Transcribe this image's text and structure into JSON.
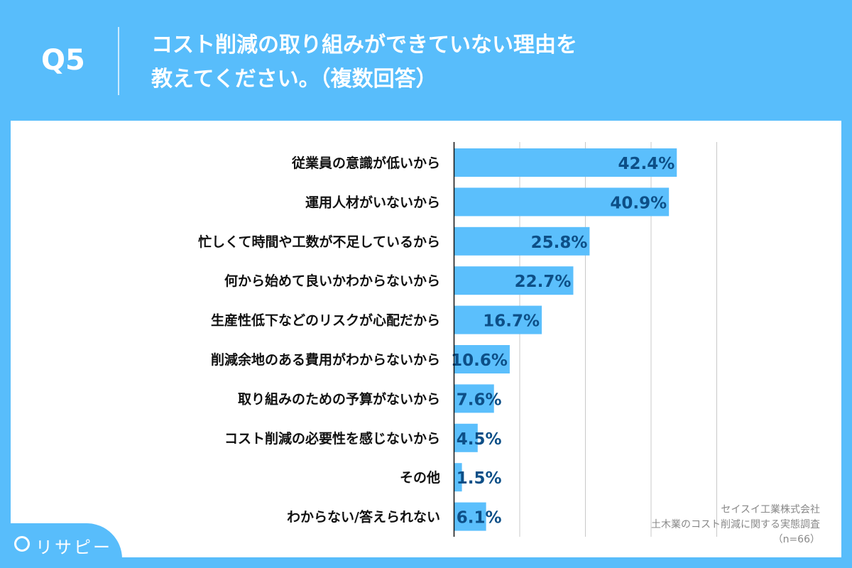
{
  "header": {
    "question_no": "Q5",
    "title_line1": "コスト削減の取り組みができていない理由を",
    "title_line2": "教えてください。（複数回答）"
  },
  "source": {
    "company": "セイスイ工業株式会社",
    "survey": "土木業のコスト削減に関する実態調査",
    "n": "（n=66）"
  },
  "logo": {
    "text": "リサピー"
  },
  "colors": {
    "background": "#58bdfb",
    "bar": "#5bbffc",
    "value_label": "#0d4f87"
  },
  "chart_data": {
    "type": "bar",
    "orientation": "horizontal",
    "categories": [
      "従業員の意識が低いから",
      "運用人材がいないから",
      "忙しくて時間や工数が不足しているから",
      "何から始めて良いかわからないから",
      "生産性低下などのリスクが心配だから",
      "削減余地のある費用がわからないから",
      "取り組みのための予算がないから",
      "コスト削減の必要性を感じないから",
      "その他",
      "わからない/答えられない"
    ],
    "values": [
      42.4,
      40.9,
      25.8,
      22.7,
      16.7,
      10.6,
      7.6,
      4.5,
      1.5,
      6.1
    ],
    "value_labels": [
      "42.4%",
      "40.9%",
      "25.8%",
      "22.7%",
      "16.7%",
      "10.6%",
      "7.6%",
      "4.5%",
      "1.5%",
      "6.1%"
    ],
    "xlim": [
      0,
      50
    ],
    "grid": true,
    "gridlines": [
      12.5,
      25,
      37.5,
      50
    ]
  }
}
